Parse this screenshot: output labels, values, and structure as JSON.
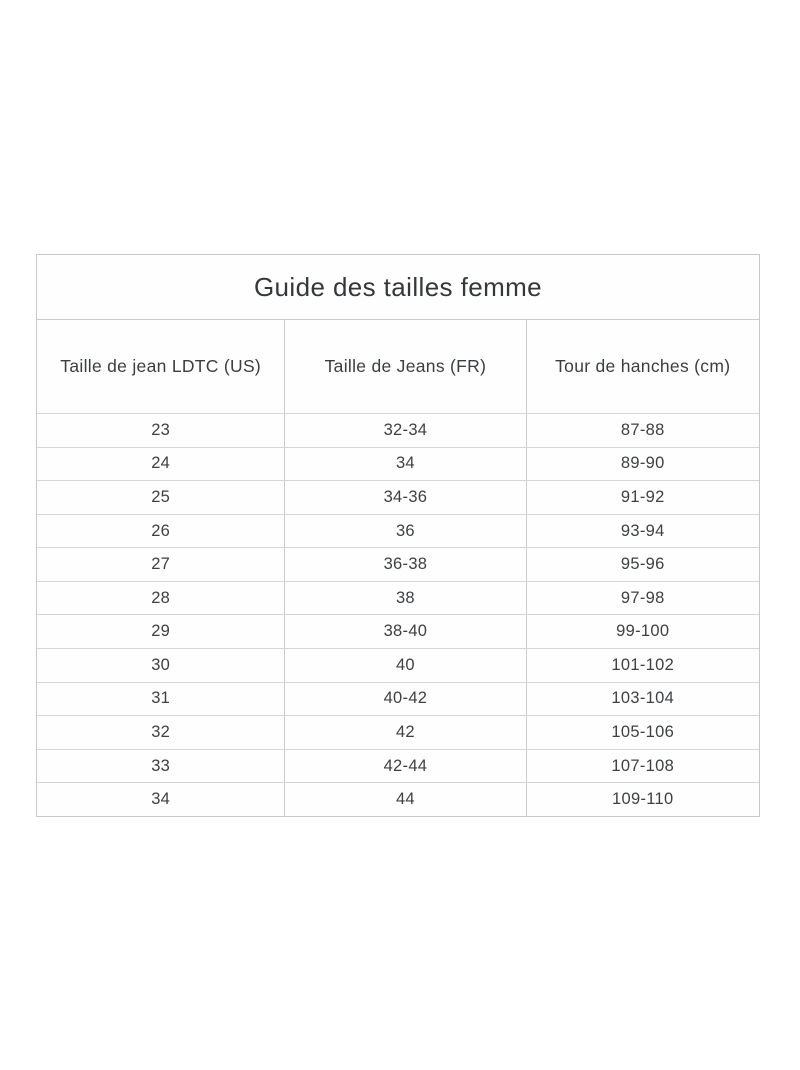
{
  "chart_data": {
    "type": "table",
    "title": "Guide des tailles femme",
    "columns": [
      "Taille de jean LDTC (US)",
      "Taille de Jeans (FR)",
      "Tour de hanches (cm)"
    ],
    "rows": [
      [
        "23",
        "32-34",
        "87-88"
      ],
      [
        "24",
        "34",
        "89-90"
      ],
      [
        "25",
        "34-36",
        "91-92"
      ],
      [
        "26",
        "36",
        "93-94"
      ],
      [
        "27",
        "36-38",
        "95-96"
      ],
      [
        "28",
        "38",
        "97-98"
      ],
      [
        "29",
        "38-40",
        "99-100"
      ],
      [
        "30",
        "40",
        "101-102"
      ],
      [
        "31",
        "40-42",
        "103-104"
      ],
      [
        "32",
        "42",
        "105-106"
      ],
      [
        "33",
        "42-44",
        "107-108"
      ],
      [
        "34",
        "44",
        "109-110"
      ]
    ],
    "layout": {
      "grid": true,
      "title_position": "top-center",
      "cell_alignment": "center"
    }
  },
  "colors": {
    "background": "#ffffff",
    "border_outer": "#c6c8c9",
    "border_inner": "#d3d5d6",
    "text": "#3d3f41"
  }
}
